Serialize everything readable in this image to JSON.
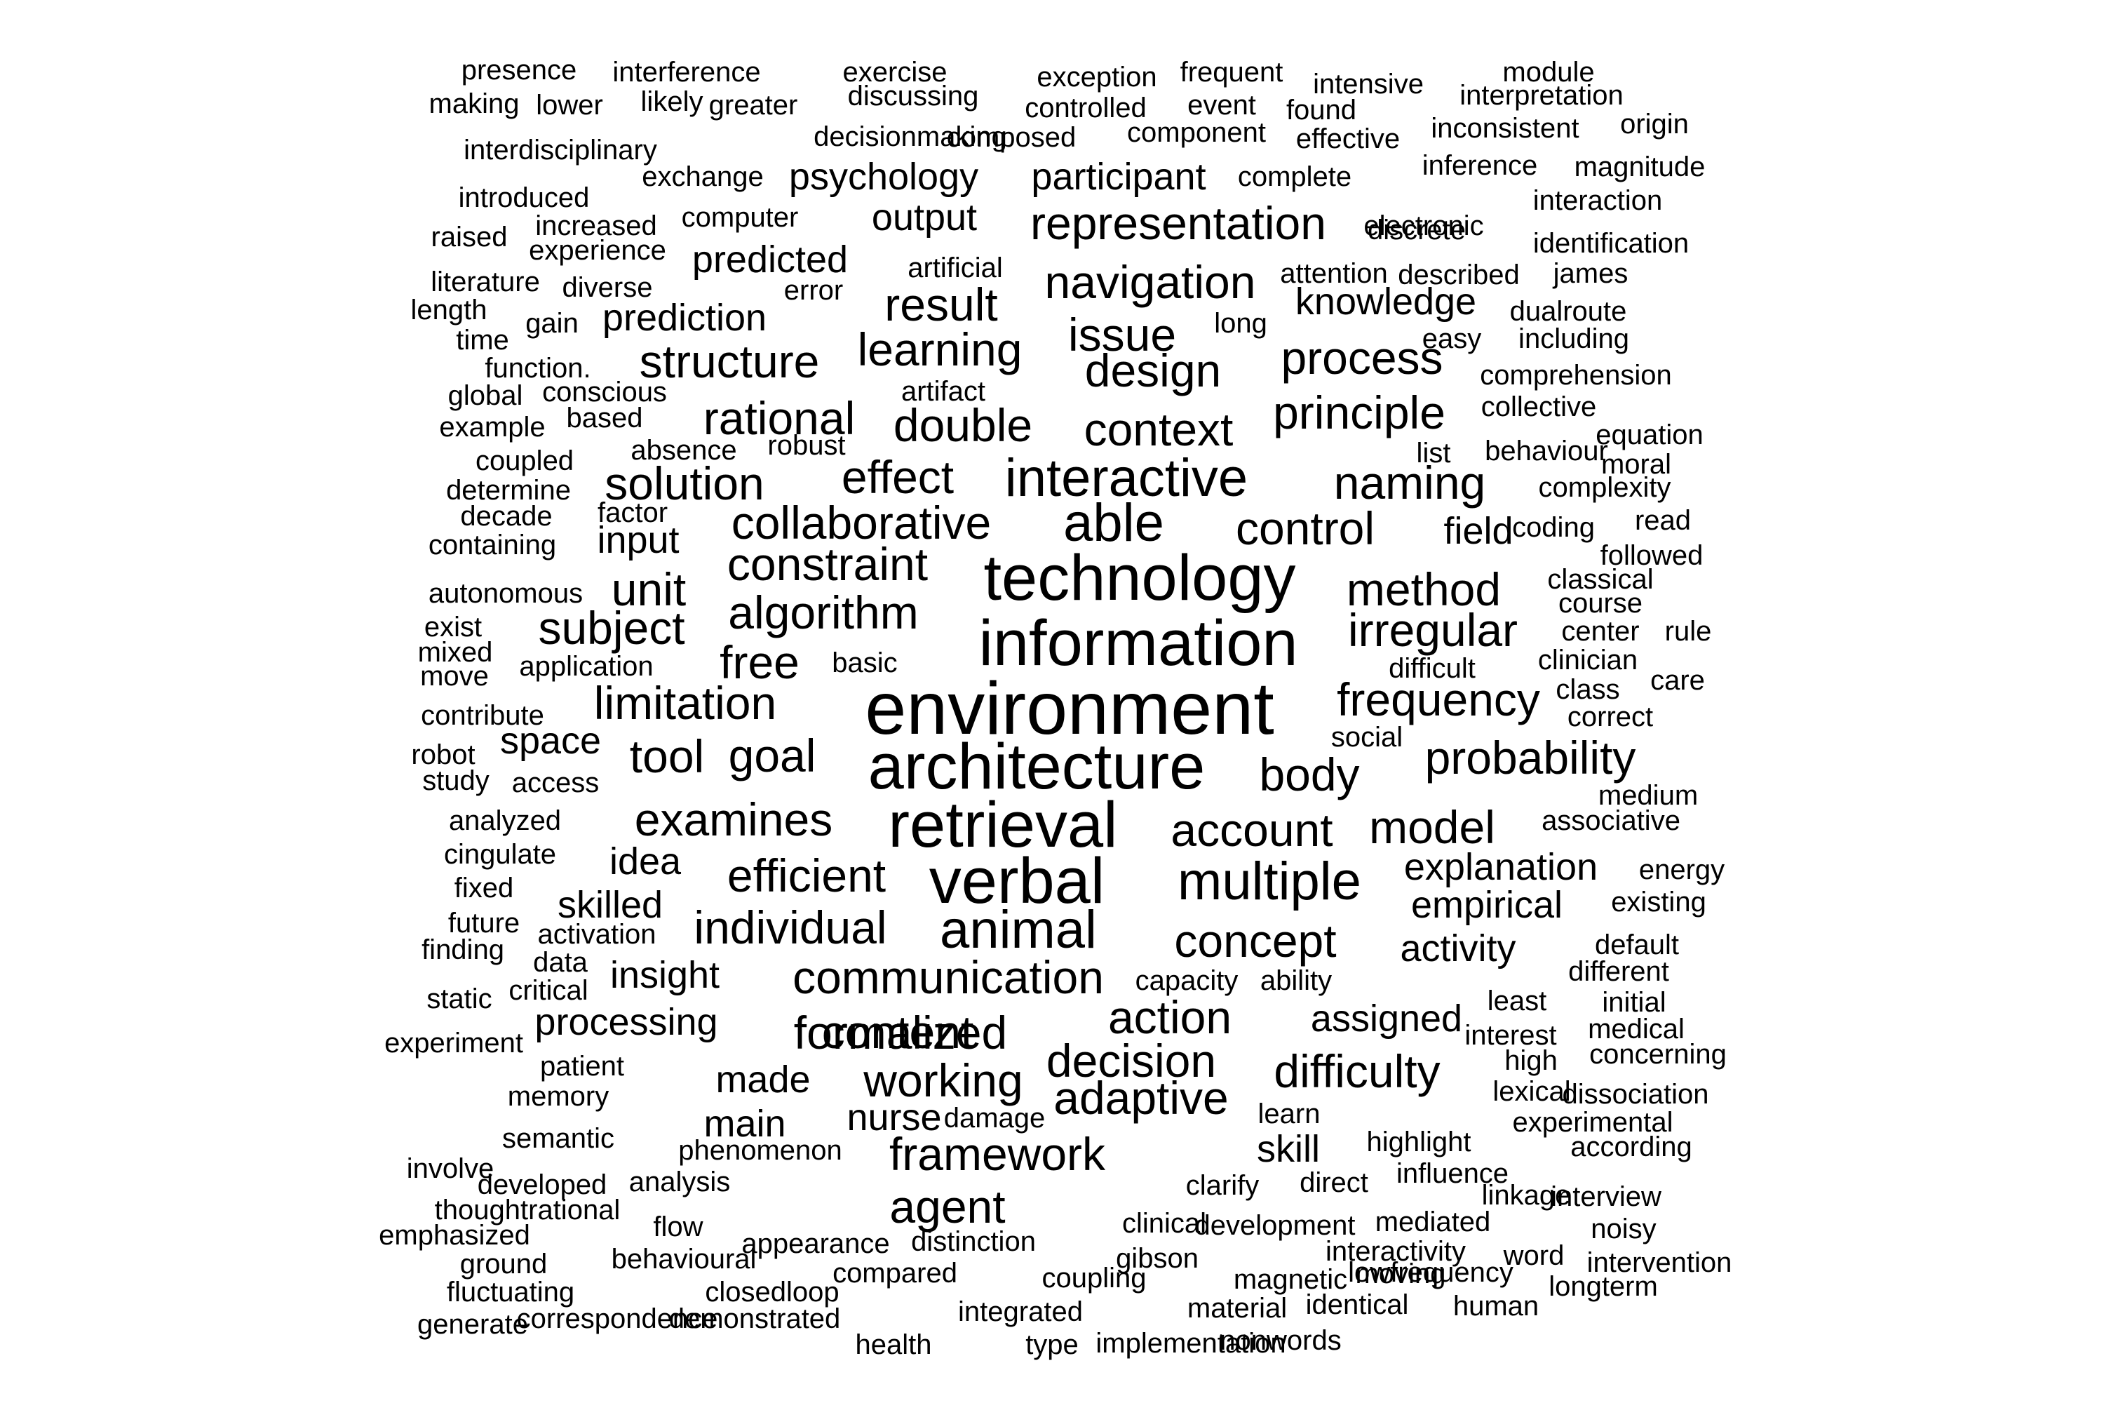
{
  "words": [
    "presence",
    "interference",
    "exercise",
    "exception",
    "frequent",
    "intensive",
    "module",
    "making",
    "lower",
    "likely",
    "greater",
    "discussing",
    "controlled",
    "event",
    "found",
    "interpretation",
    "interdisciplinary",
    "decisionmaking",
    "composed",
    "component",
    "effective",
    "inconsistent",
    "origin",
    "introduced",
    "exchange",
    "psychology",
    "participant",
    "complete",
    "inference",
    "magnitude",
    "raised",
    "increased",
    "computer",
    "output",
    "representation",
    "electronic",
    "interaction",
    "experience",
    "predicted",
    "discrete",
    "identification",
    "literature",
    "diverse",
    "artificial",
    "error",
    "navigation",
    "attention",
    "described",
    "james",
    "length",
    "time",
    "gain",
    "prediction",
    "result",
    "knowledge",
    "dualroute",
    "function.",
    "structure",
    "learning",
    "issue",
    "long",
    "easy",
    "including",
    "global",
    "conscious",
    "design",
    "process",
    "comprehension",
    "example",
    "based",
    "artifact",
    "rational",
    "double",
    "principle",
    "collective",
    "coupled",
    "absence",
    "robust",
    "context",
    "list",
    "behaviour",
    "equation",
    "determine",
    "solution",
    "effect",
    "interactive",
    "naming",
    "moral",
    "complexity",
    "decade",
    "factor",
    "collaborative",
    "able",
    "control",
    "field",
    "coding",
    "read",
    "containing",
    "input",
    "constraint",
    "technology",
    "followed",
    "autonomous",
    "unit",
    "algorithm",
    "method",
    "classical",
    "course",
    "exist",
    "subject",
    "irregular",
    "center",
    "rule",
    "mixed",
    "move",
    "application",
    "free",
    "basic",
    "information",
    "difficult",
    "clinician",
    "contribute",
    "limitation",
    "environment",
    "frequency",
    "class",
    "care",
    "correct",
    "robot",
    "space",
    "social",
    "study",
    "access",
    "tool",
    "goal",
    "architecture",
    "body",
    "probability",
    "medium",
    "analyzed",
    "examines",
    "retrieval",
    "account",
    "model",
    "associative",
    "cingulate",
    "idea",
    "efficient",
    "verbal",
    "multiple",
    "explanation",
    "energy",
    "fixed",
    "skilled",
    "empirical",
    "existing",
    "future",
    "activation",
    "individual",
    "animal",
    "concept",
    "activity",
    "default",
    "finding",
    "data",
    "insight",
    "communication",
    "capacity",
    "ability",
    "different",
    "static",
    "critical",
    "processing",
    "formalized",
    "action",
    "assigned",
    "least",
    "initial",
    "experiment",
    "content",
    "interest",
    "medical",
    "decision",
    "high",
    "concerning",
    "patient",
    "made",
    "working",
    "difficulty",
    "lexical",
    "dissociation",
    "memory",
    "adaptive",
    "learn",
    "experimental",
    "semantic",
    "main",
    "nurse",
    "damage",
    "highlight",
    "according",
    "phenomenon",
    "framework",
    "skill",
    "involve",
    "developed",
    "analysis",
    "clarify",
    "direct",
    "influence",
    "linkage",
    "interview",
    "thoughtrational",
    "agent",
    "clinical",
    "development",
    "mediated",
    "noisy",
    "emphasized",
    "flow",
    "appearance",
    "distinction",
    "interactivity",
    "word",
    "intervention",
    "ground",
    "behavioural",
    "gibson",
    "lowfrequency",
    "fluctuating",
    "closedloop",
    "compared",
    "coupling",
    "magnetic",
    "moving",
    "longterm",
    "generate",
    "correspondence",
    "demonstrated",
    "integrated",
    "material",
    "identical",
    "human",
    "health",
    "type",
    "implementation",
    "nonwords"
  ]
}
